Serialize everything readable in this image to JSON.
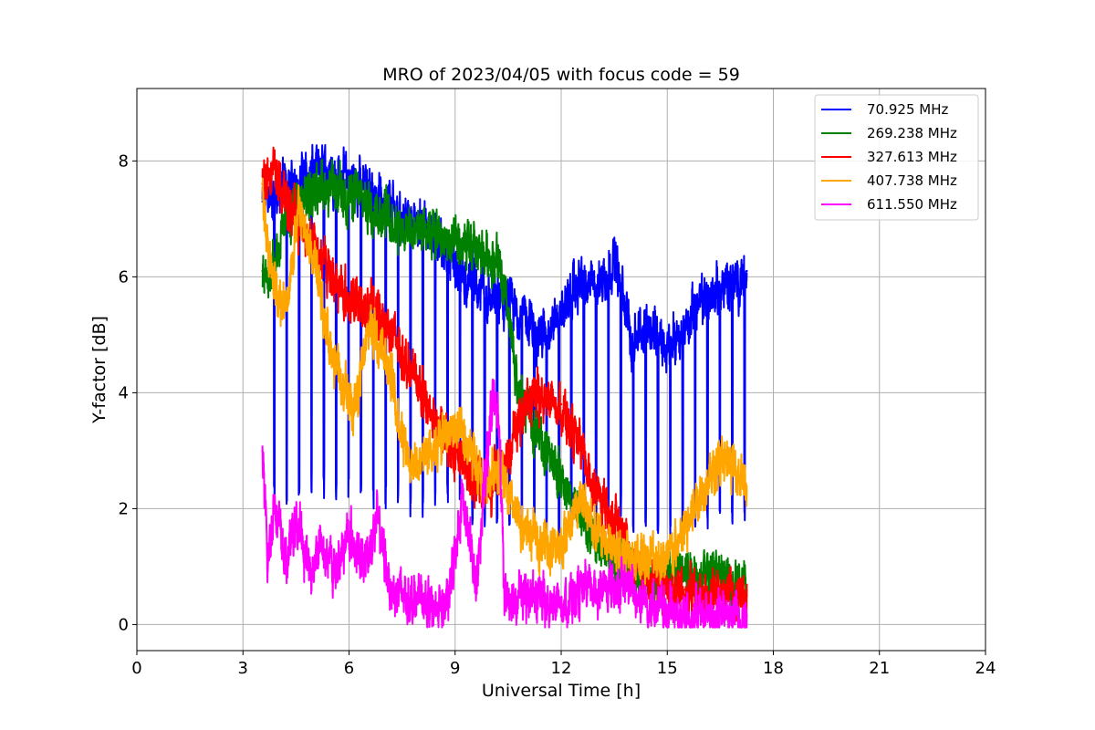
{
  "chart_data": {
    "type": "line",
    "title": "MRO of 2023/04/05 with focus code = 59",
    "xlabel": "Universal Time [h]",
    "ylabel": "Y-factor [dB]",
    "xlim": [
      0,
      24
    ],
    "ylim": [
      -0.45,
      9.25
    ],
    "xticks": [
      0,
      3,
      6,
      9,
      12,
      15,
      18,
      21,
      24
    ],
    "yticks": [
      0,
      2,
      4,
      6,
      8
    ],
    "grid": true,
    "legend_position": "top-right",
    "series": [
      {
        "name": " 70.925 MHz",
        "color": "#0000ff",
        "dips": true,
        "x": [
          3.55,
          4.0,
          4.5,
          5.0,
          5.5,
          6.0,
          6.5,
          7.0,
          7.5,
          8.0,
          8.5,
          9.0,
          9.5,
          10.0,
          10.5,
          11.0,
          11.5,
          12.0,
          12.5,
          13.0,
          13.5,
          14.0,
          14.5,
          15.0,
          15.5,
          16.0,
          16.5,
          17.0,
          17.25
        ],
        "values": [
          7.3,
          7.5,
          7.6,
          7.8,
          7.8,
          7.7,
          7.6,
          7.3,
          7.0,
          6.9,
          6.7,
          6.1,
          5.9,
          5.6,
          5.5,
          5.3,
          5.0,
          5.4,
          5.9,
          5.8,
          6.3,
          4.9,
          5.2,
          4.7,
          5.2,
          5.6,
          5.8,
          5.9,
          6.1
        ]
      },
      {
        "name": "269.238 MHz",
        "color": "#008000",
        "dips": false,
        "x": [
          3.55,
          3.8,
          4.2,
          4.7,
          5.2,
          5.7,
          6.2,
          6.7,
          7.2,
          7.7,
          8.2,
          8.7,
          9.2,
          9.7,
          10.2,
          10.5,
          10.8,
          11.2,
          11.6,
          12.0,
          12.5,
          13.0,
          13.5,
          14.0,
          14.5,
          15.0,
          15.5,
          16.0,
          16.5,
          17.0,
          17.25
        ],
        "values": [
          6.1,
          6.0,
          7.0,
          7.3,
          7.6,
          7.4,
          7.4,
          7.2,
          7.0,
          6.8,
          6.9,
          6.6,
          6.5,
          6.4,
          6.3,
          5.3,
          4.0,
          3.5,
          3.0,
          2.5,
          1.9,
          1.4,
          1.1,
          0.9,
          0.8,
          0.9,
          0.9,
          0.9,
          0.8,
          0.7,
          0.6
        ]
      },
      {
        "name": "327.613 MHz",
        "color": "#ff0000",
        "dips": false,
        "x": [
          3.55,
          3.8,
          4.2,
          4.6,
          5.0,
          5.5,
          6.0,
          6.5,
          7.0,
          7.5,
          8.0,
          8.5,
          9.0,
          9.5,
          10.0,
          10.5,
          11.0,
          11.5,
          12.0,
          12.5,
          13.0,
          13.5,
          14.0,
          14.5,
          15.0,
          15.5,
          16.0,
          16.5,
          17.0,
          17.25
        ],
        "values": [
          7.6,
          7.9,
          7.3,
          6.9,
          6.6,
          6.0,
          5.6,
          5.5,
          5.3,
          4.7,
          4.1,
          3.4,
          3.0,
          2.5,
          2.4,
          3.0,
          3.8,
          3.9,
          3.8,
          3.0,
          2.3,
          1.8,
          1.2,
          0.8,
          0.6,
          0.6,
          0.5,
          0.5,
          0.6,
          0.5
        ]
      },
      {
        "name": "407.738 MHz",
        "color": "#ffa500",
        "dips": false,
        "x": [
          3.55,
          3.8,
          4.2,
          4.6,
          5.0,
          5.4,
          5.8,
          6.2,
          6.6,
          7.0,
          7.4,
          7.8,
          8.2,
          8.6,
          9.0,
          9.4,
          9.8,
          10.2,
          10.6,
          11.0,
          11.5,
          12.0,
          12.5,
          13.0,
          13.5,
          14.0,
          14.5,
          15.0,
          15.5,
          16.0,
          16.5,
          17.0,
          17.25
        ],
        "values": [
          7.5,
          6.0,
          5.5,
          7.2,
          6.3,
          5.0,
          4.0,
          3.8,
          5.2,
          4.8,
          3.6,
          2.7,
          3.0,
          3.2,
          3.4,
          3.0,
          2.3,
          2.8,
          2.0,
          1.6,
          1.4,
          1.3,
          2.2,
          1.6,
          1.3,
          1.1,
          1.2,
          1.1,
          1.6,
          2.4,
          2.8,
          2.7,
          2.3
        ]
      },
      {
        "name": "611.550 MHz",
        "color": "#ff00ff",
        "dips": false,
        "x": [
          3.55,
          3.7,
          3.9,
          4.2,
          4.5,
          4.9,
          5.2,
          5.6,
          6.0,
          6.4,
          6.8,
          7.2,
          7.6,
          8.0,
          8.4,
          8.8,
          9.2,
          9.6,
          10.0,
          10.2,
          10.4,
          10.8,
          11.2,
          11.6,
          12.0,
          12.5,
          13.0,
          13.5,
          14.0,
          14.5,
          15.0,
          15.5,
          16.0,
          16.5,
          17.0,
          17.25
        ],
        "values": [
          3.0,
          1.0,
          2.2,
          1.0,
          1.8,
          0.9,
          1.4,
          0.9,
          1.6,
          1.0,
          1.8,
          0.6,
          0.5,
          0.45,
          0.3,
          0.35,
          2.2,
          0.7,
          3.6,
          4.0,
          0.5,
          0.5,
          0.5,
          0.3,
          0.4,
          0.5,
          0.6,
          0.7,
          0.6,
          0.4,
          0.2,
          0.15,
          0.2,
          0.15,
          0.15,
          0.15
        ]
      }
    ]
  }
}
